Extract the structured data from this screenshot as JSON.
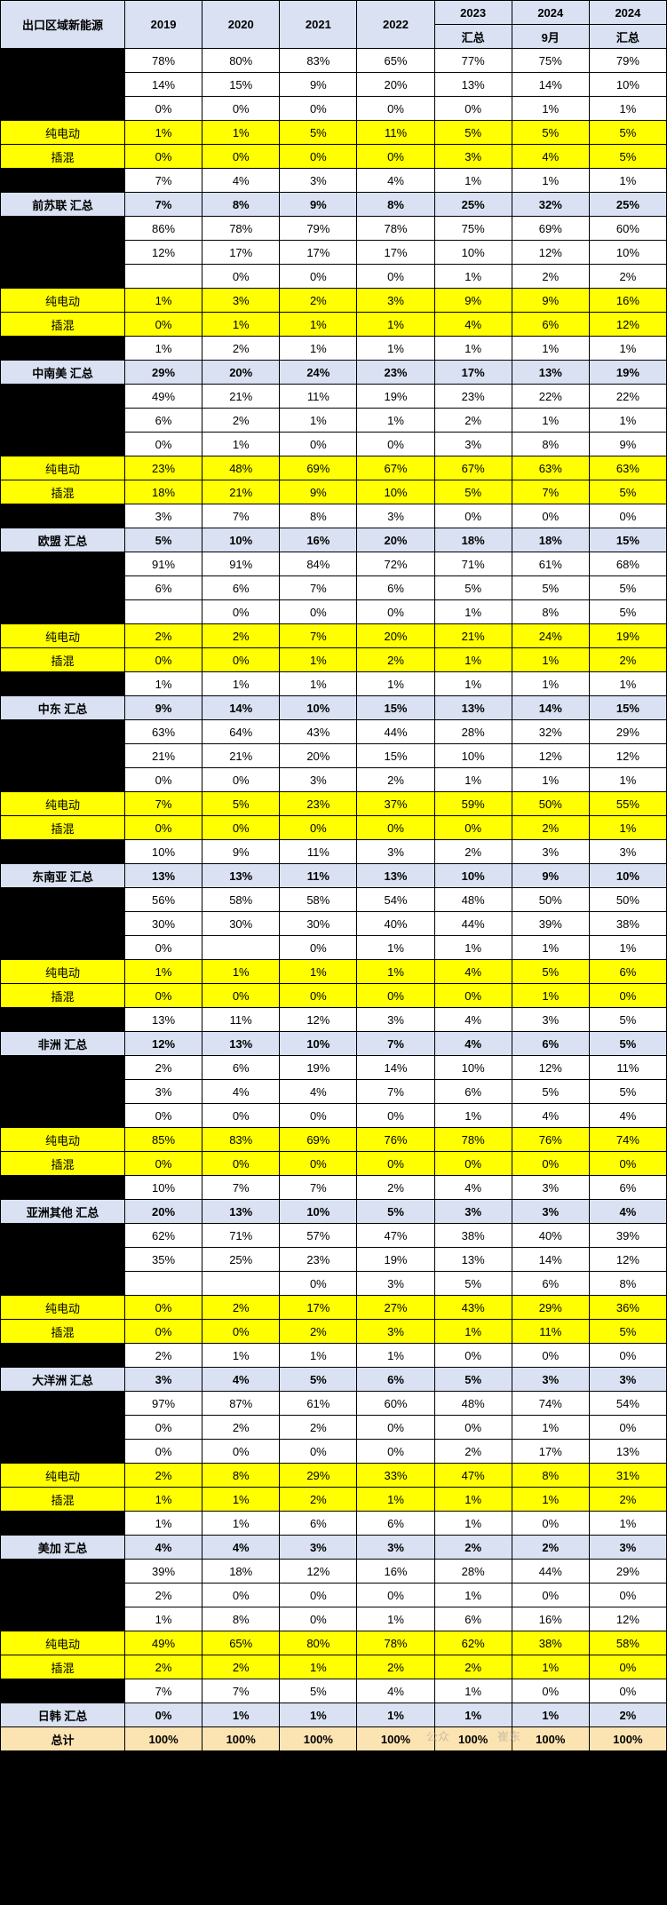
{
  "headers": {
    "c0": "出口区域新能源",
    "c1": "2019",
    "c2": "2020",
    "c3": "2021",
    "c4": "2022",
    "c5a": "2023",
    "c5b": "汇总",
    "c6a": "2024",
    "c6b": "9月",
    "c7a": "2024",
    "c7b": "汇总"
  },
  "labels": {
    "bev": "纯电动",
    "phev": "插混",
    "subtotal": "汇总",
    "total": "总计"
  },
  "groups": [
    {
      "name": "前苏联",
      "rows": [
        [
          "78%",
          "80%",
          "83%",
          "65%",
          "77%",
          "75%",
          "79%"
        ],
        [
          "14%",
          "15%",
          "9%",
          "20%",
          "13%",
          "14%",
          "10%"
        ],
        [
          "0%",
          "0%",
          "0%",
          "0%",
          "0%",
          "1%",
          "1%"
        ],
        [
          "1%",
          "1%",
          "5%",
          "11%",
          "5%",
          "5%",
          "5%"
        ],
        [
          "0%",
          "0%",
          "0%",
          "0%",
          "3%",
          "4%",
          "5%"
        ],
        [
          "7%",
          "4%",
          "3%",
          "4%",
          "1%",
          "1%",
          "1%"
        ]
      ],
      "sum": [
        "7%",
        "8%",
        "9%",
        "8%",
        "25%",
        "32%",
        "25%"
      ]
    },
    {
      "name": "中南美",
      "rows": [
        [
          "86%",
          "78%",
          "79%",
          "78%",
          "75%",
          "69%",
          "60%"
        ],
        [
          "12%",
          "17%",
          "17%",
          "17%",
          "10%",
          "12%",
          "10%"
        ],
        [
          "",
          "0%",
          "0%",
          "0%",
          "1%",
          "2%",
          "2%"
        ],
        [
          "1%",
          "3%",
          "2%",
          "3%",
          "9%",
          "9%",
          "16%"
        ],
        [
          "0%",
          "1%",
          "1%",
          "1%",
          "4%",
          "6%",
          "12%"
        ],
        [
          "1%",
          "2%",
          "1%",
          "1%",
          "1%",
          "1%",
          "1%"
        ]
      ],
      "sum": [
        "29%",
        "20%",
        "24%",
        "23%",
        "17%",
        "13%",
        "19%"
      ]
    },
    {
      "name": "欧盟",
      "rows": [
        [
          "49%",
          "21%",
          "11%",
          "19%",
          "23%",
          "22%",
          "22%"
        ],
        [
          "6%",
          "2%",
          "1%",
          "1%",
          "2%",
          "1%",
          "1%"
        ],
        [
          "0%",
          "1%",
          "0%",
          "0%",
          "3%",
          "8%",
          "9%"
        ],
        [
          "23%",
          "48%",
          "69%",
          "67%",
          "67%",
          "63%",
          "63%"
        ],
        [
          "18%",
          "21%",
          "9%",
          "10%",
          "5%",
          "7%",
          "5%"
        ],
        [
          "3%",
          "7%",
          "8%",
          "3%",
          "0%",
          "0%",
          "0%"
        ]
      ],
      "sum": [
        "5%",
        "10%",
        "16%",
        "20%",
        "18%",
        "18%",
        "15%"
      ]
    },
    {
      "name": "中东",
      "rows": [
        [
          "91%",
          "91%",
          "84%",
          "72%",
          "71%",
          "61%",
          "68%"
        ],
        [
          "6%",
          "6%",
          "7%",
          "6%",
          "5%",
          "5%",
          "5%"
        ],
        [
          "",
          "0%",
          "0%",
          "0%",
          "1%",
          "8%",
          "5%"
        ],
        [
          "2%",
          "2%",
          "7%",
          "20%",
          "21%",
          "24%",
          "19%"
        ],
        [
          "0%",
          "0%",
          "1%",
          "2%",
          "1%",
          "1%",
          "2%"
        ],
        [
          "1%",
          "1%",
          "1%",
          "1%",
          "1%",
          "1%",
          "1%"
        ]
      ],
      "sum": [
        "9%",
        "14%",
        "10%",
        "15%",
        "13%",
        "14%",
        "15%"
      ]
    },
    {
      "name": "东南亚",
      "rows": [
        [
          "63%",
          "64%",
          "43%",
          "44%",
          "28%",
          "32%",
          "29%"
        ],
        [
          "21%",
          "21%",
          "20%",
          "15%",
          "10%",
          "12%",
          "12%"
        ],
        [
          "0%",
          "0%",
          "3%",
          "2%",
          "1%",
          "1%",
          "1%"
        ],
        [
          "7%",
          "5%",
          "23%",
          "37%",
          "59%",
          "50%",
          "55%"
        ],
        [
          "0%",
          "0%",
          "0%",
          "0%",
          "0%",
          "2%",
          "1%"
        ],
        [
          "10%",
          "9%",
          "11%",
          "3%",
          "2%",
          "3%",
          "3%"
        ]
      ],
      "sum": [
        "13%",
        "13%",
        "11%",
        "13%",
        "10%",
        "9%",
        "10%"
      ]
    },
    {
      "name": "非洲",
      "rows": [
        [
          "56%",
          "58%",
          "58%",
          "54%",
          "48%",
          "50%",
          "50%"
        ],
        [
          "30%",
          "30%",
          "30%",
          "40%",
          "44%",
          "39%",
          "38%"
        ],
        [
          "0%",
          "",
          "0%",
          "1%",
          "1%",
          "1%",
          "1%"
        ],
        [
          "1%",
          "1%",
          "1%",
          "1%",
          "4%",
          "5%",
          "6%"
        ],
        [
          "0%",
          "0%",
          "0%",
          "0%",
          "0%",
          "1%",
          "0%"
        ],
        [
          "13%",
          "11%",
          "12%",
          "3%",
          "4%",
          "3%",
          "5%"
        ]
      ],
      "sum": [
        "12%",
        "13%",
        "10%",
        "7%",
        "4%",
        "6%",
        "5%"
      ]
    },
    {
      "name": "亚洲其他",
      "rows": [
        [
          "2%",
          "6%",
          "19%",
          "14%",
          "10%",
          "12%",
          "11%"
        ],
        [
          "3%",
          "4%",
          "4%",
          "7%",
          "6%",
          "5%",
          "5%"
        ],
        [
          "0%",
          "0%",
          "0%",
          "0%",
          "1%",
          "4%",
          "4%"
        ],
        [
          "85%",
          "83%",
          "69%",
          "76%",
          "78%",
          "76%",
          "74%"
        ],
        [
          "0%",
          "0%",
          "0%",
          "0%",
          "0%",
          "0%",
          "0%"
        ],
        [
          "10%",
          "7%",
          "7%",
          "2%",
          "4%",
          "3%",
          "6%"
        ]
      ],
      "sum": [
        "20%",
        "13%",
        "10%",
        "5%",
        "3%",
        "3%",
        "4%"
      ]
    },
    {
      "name": "大洋洲",
      "rows": [
        [
          "62%",
          "71%",
          "57%",
          "47%",
          "38%",
          "40%",
          "39%"
        ],
        [
          "35%",
          "25%",
          "23%",
          "19%",
          "13%",
          "14%",
          "12%"
        ],
        [
          "",
          "",
          "0%",
          "3%",
          "5%",
          "6%",
          "8%"
        ],
        [
          "0%",
          "2%",
          "17%",
          "27%",
          "43%",
          "29%",
          "36%"
        ],
        [
          "0%",
          "0%",
          "2%",
          "3%",
          "1%",
          "11%",
          "5%"
        ],
        [
          "2%",
          "1%",
          "1%",
          "1%",
          "0%",
          "0%",
          "0%"
        ]
      ],
      "sum": [
        "3%",
        "4%",
        "5%",
        "6%",
        "5%",
        "3%",
        "3%"
      ]
    },
    {
      "name": "美加",
      "rows": [
        [
          "97%",
          "87%",
          "61%",
          "60%",
          "48%",
          "74%",
          "54%"
        ],
        [
          "0%",
          "2%",
          "2%",
          "0%",
          "0%",
          "1%",
          "0%"
        ],
        [
          "0%",
          "0%",
          "0%",
          "0%",
          "2%",
          "17%",
          "13%"
        ],
        [
          "2%",
          "8%",
          "29%",
          "33%",
          "47%",
          "8%",
          "31%"
        ],
        [
          "1%",
          "1%",
          "2%",
          "1%",
          "1%",
          "1%",
          "2%"
        ],
        [
          "1%",
          "1%",
          "6%",
          "6%",
          "1%",
          "0%",
          "1%"
        ]
      ],
      "sum": [
        "4%",
        "4%",
        "3%",
        "3%",
        "2%",
        "2%",
        "3%"
      ]
    },
    {
      "name": "日韩",
      "rows": [
        [
          "39%",
          "18%",
          "12%",
          "16%",
          "28%",
          "44%",
          "29%"
        ],
        [
          "2%",
          "0%",
          "0%",
          "0%",
          "1%",
          "0%",
          "0%"
        ],
        [
          "1%",
          "8%",
          "0%",
          "1%",
          "6%",
          "16%",
          "12%"
        ],
        [
          "49%",
          "65%",
          "80%",
          "78%",
          "62%",
          "38%",
          "58%"
        ],
        [
          "2%",
          "2%",
          "1%",
          "2%",
          "2%",
          "1%",
          "0%"
        ],
        [
          "7%",
          "7%",
          "5%",
          "4%",
          "1%",
          "0%",
          "0%"
        ]
      ],
      "sum": [
        "0%",
        "1%",
        "1%",
        "1%",
        "1%",
        "1%",
        "2%"
      ]
    }
  ],
  "grand": [
    "100%",
    "100%",
    "100%",
    "100%",
    "100%",
    "100%",
    "100%"
  ],
  "watermark1": "公众",
  "watermark2": "崔东"
}
